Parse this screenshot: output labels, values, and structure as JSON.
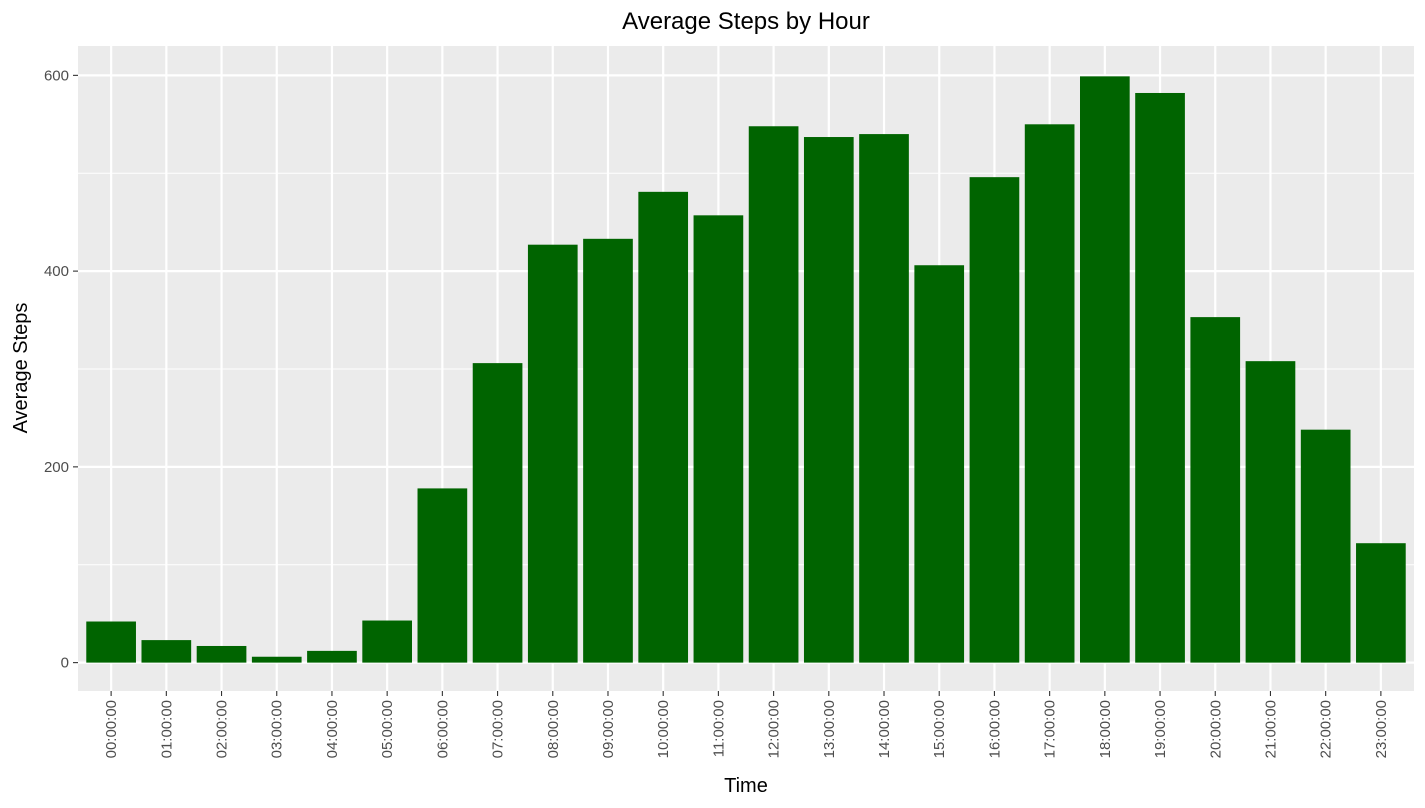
{
  "chart_data": {
    "type": "bar",
    "title": "Average Steps by Hour",
    "xlabel": "Time",
    "ylabel": "Average Steps",
    "categories": [
      "00:00:00",
      "01:00:00",
      "02:00:00",
      "03:00:00",
      "04:00:00",
      "05:00:00",
      "06:00:00",
      "07:00:00",
      "08:00:00",
      "09:00:00",
      "10:00:00",
      "11:00:00",
      "12:00:00",
      "13:00:00",
      "14:00:00",
      "15:00:00",
      "16:00:00",
      "17:00:00",
      "18:00:00",
      "19:00:00",
      "20:00:00",
      "21:00:00",
      "22:00:00",
      "23:00:00"
    ],
    "values": [
      42,
      23,
      17,
      6,
      12,
      43,
      178,
      306,
      427,
      433,
      481,
      457,
      548,
      537,
      540,
      406,
      496,
      550,
      599,
      582,
      353,
      308,
      238,
      122
    ],
    "ylim": [
      -29,
      630
    ],
    "yticks": [
      0,
      200,
      400,
      600
    ],
    "grid": true,
    "legend": "none",
    "colors": {
      "bar": "#006400",
      "panel": "#ebebeb",
      "grid_major": "#ffffff",
      "tick_text": "#4d4d4d"
    }
  }
}
